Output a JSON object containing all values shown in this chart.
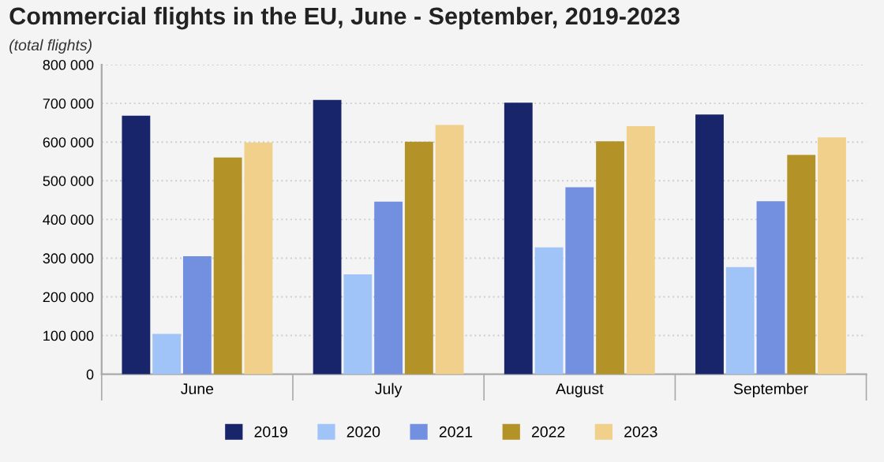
{
  "chart_data": {
    "type": "bar",
    "title": "Commercial flights in the EU, June - September, 2019-2023",
    "subtitle": "(total flights)",
    "categories": [
      "June",
      "July",
      "August",
      "September"
    ],
    "series": [
      {
        "name": "2019",
        "color": "#18256b",
        "values": [
          668000,
          709000,
          702000,
          671000
        ]
      },
      {
        "name": "2020",
        "color": "#a0c4f8",
        "values": [
          104000,
          258000,
          328000,
          277000
        ]
      },
      {
        "name": "2021",
        "color": "#7390e0",
        "values": [
          305000,
          446000,
          483000,
          447000
        ]
      },
      {
        "name": "2022",
        "color": "#b39227",
        "values": [
          560000,
          601000,
          602000,
          567000
        ]
      },
      {
        "name": "2023",
        "color": "#f0d08a",
        "values": [
          599000,
          644000,
          641000,
          612000
        ]
      }
    ],
    "ylim": [
      0,
      800000
    ],
    "yticks": [
      {
        "value": 0,
        "label": "0"
      },
      {
        "value": 100000,
        "label": "100 000"
      },
      {
        "value": 200000,
        "label": "200 000"
      },
      {
        "value": 300000,
        "label": "300 000"
      },
      {
        "value": 400000,
        "label": "400 000"
      },
      {
        "value": 500000,
        "label": "500 000"
      },
      {
        "value": 600000,
        "label": "600 000"
      },
      {
        "value": 700000,
        "label": "700 000"
      },
      {
        "value": 800000,
        "label": "800 000"
      }
    ],
    "grid": "y",
    "legend": "bottom"
  }
}
